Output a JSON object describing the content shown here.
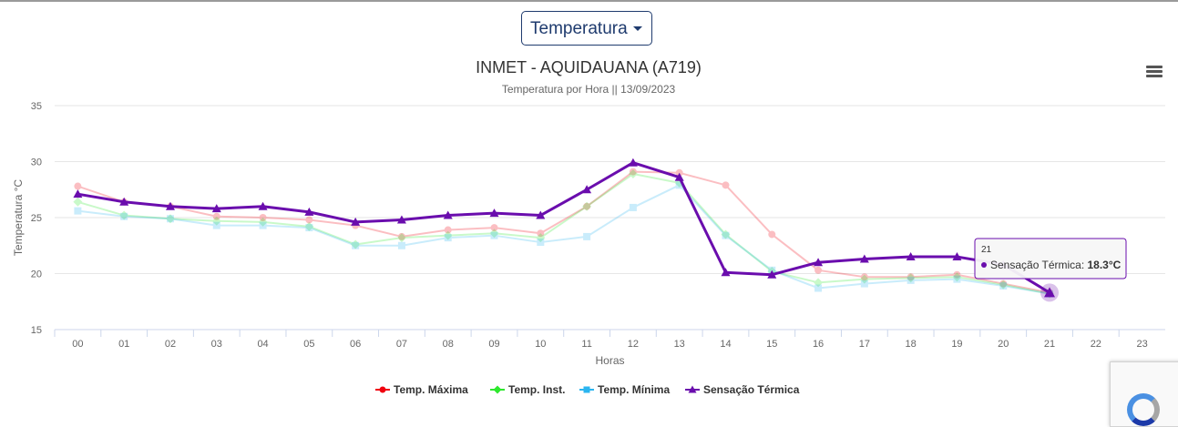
{
  "selector": {
    "label": "Temperatura",
    "icon": "caret-down-icon"
  },
  "menu": {
    "icon": "hamburger-menu-icon"
  },
  "chart_data": {
    "type": "line",
    "title": "INMET - AQUIDAUANA (A719)",
    "subtitle": "Temperatura por Hora || 13/09/2023",
    "xlabel": "Horas",
    "ylabel": "Temperatura °C",
    "categories": [
      "00",
      "01",
      "02",
      "03",
      "04",
      "05",
      "06",
      "07",
      "08",
      "09",
      "10",
      "11",
      "12",
      "13",
      "14",
      "15",
      "16",
      "17",
      "18",
      "19",
      "20",
      "21",
      "22",
      "23"
    ],
    "ylim": [
      15,
      35
    ],
    "yticks": [
      15,
      20,
      25,
      30,
      35
    ],
    "grid": true,
    "legend_position": "bottom",
    "series": [
      {
        "name": "Temp. Máxima",
        "color": "#f0000f",
        "marker": "circle",
        "faded": true,
        "values": [
          27.8,
          26.4,
          26.0,
          25.1,
          25.0,
          24.8,
          24.3,
          23.3,
          23.9,
          24.1,
          23.6,
          26.0,
          29.1,
          29.0,
          27.9,
          23.5,
          20.3,
          19.7,
          19.7,
          19.9,
          19.1,
          18.3,
          null,
          null
        ]
      },
      {
        "name": "Temp. Inst.",
        "color": "#2ee82e",
        "marker": "diamond",
        "faded": true,
        "values": [
          26.4,
          25.2,
          24.9,
          24.7,
          24.6,
          24.2,
          22.6,
          23.2,
          23.4,
          23.6,
          23.2,
          26.0,
          28.9,
          28.1,
          23.5,
          20.2,
          19.2,
          19.5,
          19.6,
          19.7,
          19.0,
          18.2,
          null,
          null
        ]
      },
      {
        "name": "Temp. Mínima",
        "color": "#2bb5f0",
        "marker": "square",
        "faded": true,
        "values": [
          25.6,
          25.1,
          24.9,
          24.3,
          24.3,
          24.1,
          22.5,
          22.5,
          23.2,
          23.4,
          22.8,
          23.3,
          25.9,
          27.9,
          23.4,
          20.3,
          18.7,
          19.1,
          19.4,
          19.5,
          18.9,
          18.2,
          null,
          null
        ]
      },
      {
        "name": "Sensação Térmica",
        "color": "#6a0dad",
        "marker": "triangle",
        "faded": false,
        "values": [
          27.1,
          26.4,
          26.0,
          25.8,
          26.0,
          25.5,
          24.6,
          24.8,
          25.2,
          25.4,
          25.2,
          27.5,
          29.9,
          28.6,
          20.1,
          19.9,
          21.0,
          21.3,
          21.5,
          21.5,
          20.8,
          18.3,
          null,
          null
        ]
      }
    ],
    "tooltip": {
      "category": "21",
      "series": "Sensação Térmica",
      "label": "Sensação Térmica:",
      "value": "18.3°C"
    }
  }
}
